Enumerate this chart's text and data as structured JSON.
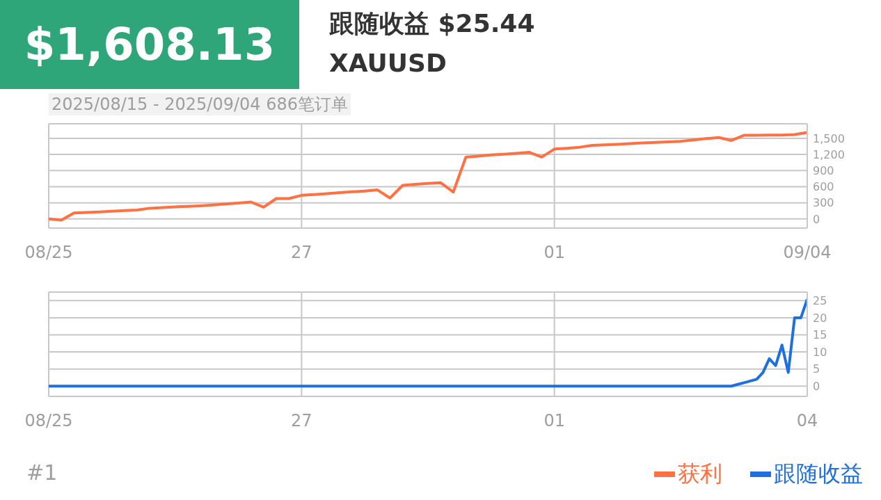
{
  "chart_data": [
    {
      "type": "line",
      "title": "$1,608.13",
      "subtitle": "跟随收益 $25.44",
      "annotations": [
        "XAUUSD",
        "2025/08/15 - 2025/09/04  686笔订单"
      ],
      "categories": [
        "08/25",
        null,
        null,
        null,
        null,
        null,
        null,
        null,
        null,
        null,
        null,
        null,
        null,
        null,
        null,
        null,
        null,
        null,
        null,
        null,
        "27",
        null,
        null,
        null,
        null,
        null,
        null,
        null,
        null,
        null,
        null,
        null,
        null,
        null,
        null,
        null,
        null,
        null,
        null,
        null,
        "01",
        null,
        null,
        null,
        null,
        null,
        null,
        null,
        null,
        null,
        null,
        null,
        null,
        null,
        null,
        null,
        null,
        null,
        null,
        null,
        "09/04"
      ],
      "series": [
        {
          "name": "获利",
          "color": "#ff7043",
          "values": [
            0,
            -20,
            110,
            120,
            130,
            145,
            155,
            165,
            200,
            210,
            225,
            235,
            245,
            260,
            280,
            295,
            315,
            220,
            380,
            380,
            440,
            455,
            470,
            490,
            505,
            520,
            540,
            390,
            625,
            645,
            660,
            675,
            500,
            1150,
            1170,
            1190,
            1205,
            1220,
            1240,
            1150,
            1300,
            1315,
            1335,
            1370,
            1380,
            1390,
            1400,
            1415,
            1425,
            1435,
            1445,
            1470,
            1495,
            1515,
            1460,
            1555,
            1558,
            1560,
            1560,
            1570,
            1608
          ]
        }
      ],
      "ylim": [
        -170,
        1770
      ],
      "yticks": [
        0,
        300,
        600,
        900,
        {
          "value": 1200,
          "label": "1,200"
        },
        {
          "value": 1500,
          "label": "1,500"
        }
      ],
      "grid": true,
      "legend": "bottom right"
    },
    {
      "type": "line",
      "annotations": [
        "#1"
      ],
      "categories": [
        "08/25",
        null,
        null,
        null,
        null,
        null,
        null,
        null,
        null,
        null,
        null,
        null,
        null,
        null,
        null,
        null,
        null,
        null,
        null,
        null,
        null,
        null,
        null,
        null,
        null,
        null,
        null,
        null,
        null,
        null,
        null,
        null,
        null,
        null,
        null,
        null,
        null,
        null,
        null,
        null,
        "27",
        null,
        null,
        null,
        null,
        null,
        null,
        null,
        null,
        null,
        null,
        null,
        null,
        null,
        null,
        null,
        null,
        null,
        null,
        null,
        null,
        null,
        null,
        null,
        null,
        null,
        null,
        null,
        null,
        null,
        null,
        null,
        null,
        null,
        null,
        null,
        null,
        null,
        null,
        null,
        "01",
        null,
        null,
        null,
        null,
        null,
        null,
        null,
        null,
        null,
        null,
        null,
        null,
        null,
        null,
        null,
        null,
        null,
        null,
        null,
        null,
        null,
        null,
        null,
        null,
        null,
        null,
        null,
        null,
        null,
        null,
        null,
        null,
        null,
        null,
        null,
        null,
        null,
        null,
        null,
        "04"
      ],
      "series": [
        {
          "name": "跟随收益",
          "color": "#1e6fe0",
          "values": [
            0,
            0,
            0,
            0,
            0,
            0,
            0,
            0,
            0,
            0,
            0,
            0,
            0,
            0,
            0,
            0,
            0,
            0,
            0,
            0,
            0,
            0,
            0,
            0,
            0,
            0,
            0,
            0,
            0,
            0,
            0,
            0,
            0,
            0,
            0,
            0,
            0,
            0,
            0,
            0,
            0,
            0,
            0,
            0,
            0,
            0,
            0,
            0,
            0,
            0,
            0,
            0,
            0,
            0,
            0,
            0,
            0,
            0,
            0,
            0,
            0,
            0,
            0,
            0,
            0,
            0,
            0,
            0,
            0,
            0,
            0,
            0,
            0,
            0,
            0,
            0,
            0,
            0,
            0,
            0,
            0,
            0,
            0,
            0,
            0,
            0,
            0,
            0,
            0,
            0,
            0,
            0,
            0,
            0,
            0,
            0,
            0,
            0,
            0,
            0,
            0,
            0,
            0,
            0,
            0,
            0,
            0,
            0,
            0,
            0.5,
            1,
            1.5,
            2,
            4,
            8,
            6,
            12,
            4,
            20,
            20,
            25.4
          ]
        }
      ],
      "ylim": [
        -3,
        27.5
      ],
      "yticks": [
        0,
        5,
        10,
        15,
        20,
        25
      ],
      "grid": true,
      "legend": "bottom right"
    }
  ]
}
